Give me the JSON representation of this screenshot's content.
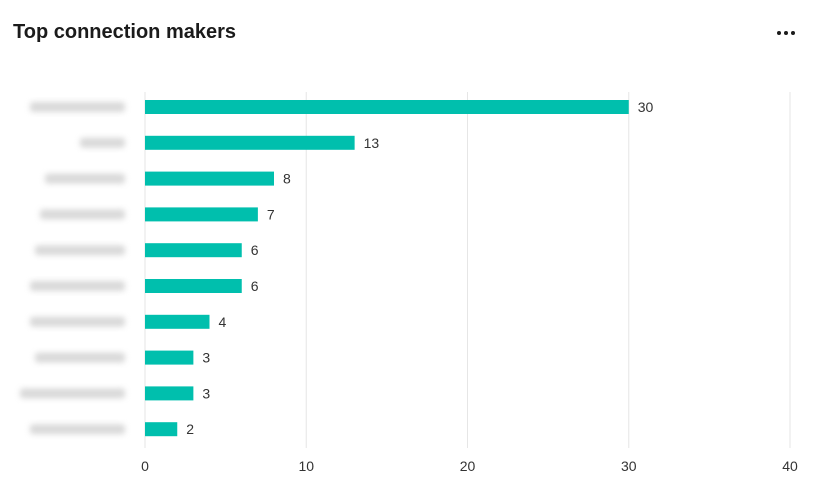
{
  "card": {
    "title": "Top connection makers",
    "more_icon": "more-horizontal-icon"
  },
  "chart_data": {
    "type": "bar",
    "orientation": "horizontal",
    "title": "Top connection makers",
    "categories_redacted": true,
    "values": [
      30,
      13,
      8,
      7,
      6,
      6,
      4,
      3,
      3,
      2
    ],
    "xlim": [
      0,
      40
    ],
    "xticks": [
      0,
      10,
      20,
      30,
      40
    ],
    "grid": true,
    "bar_color": "#00bfad"
  }
}
